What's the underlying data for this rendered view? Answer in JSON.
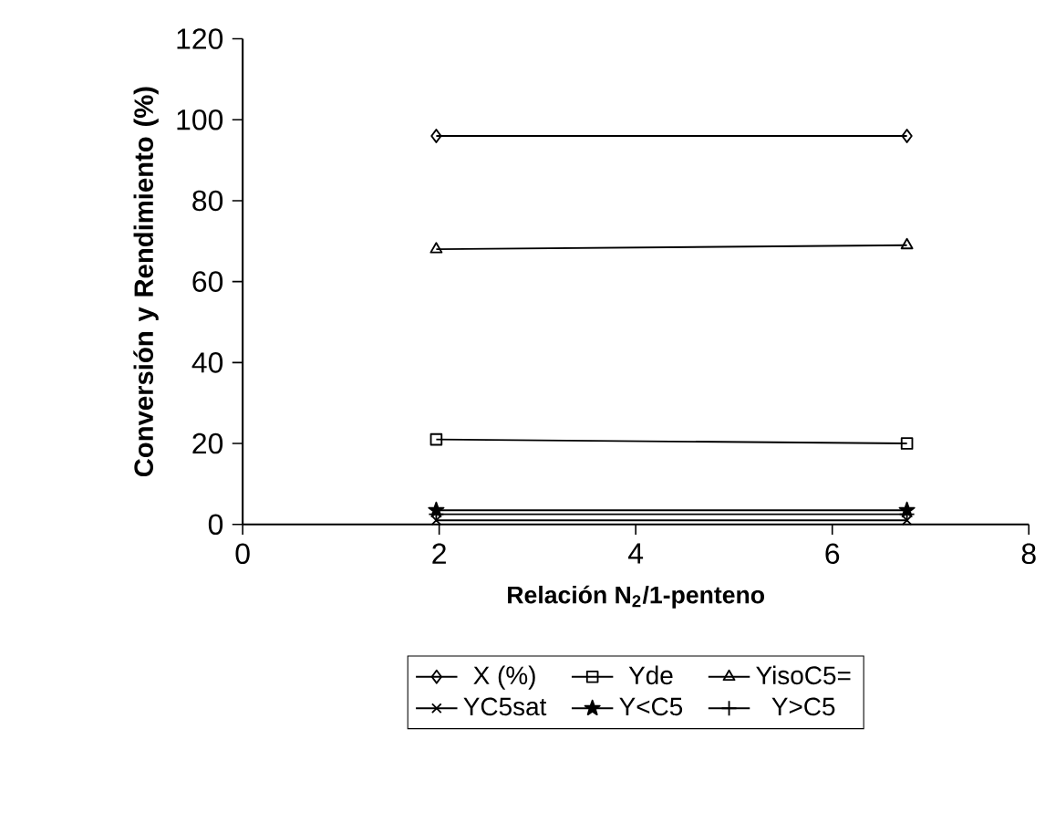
{
  "chart_data": {
    "type": "line",
    "xlabel": "Relación N$_{2}$/1-penteno",
    "ylabel": "Conversión y Rendimiento (%)",
    "x": [
      1.97,
      6.76
    ],
    "xlim": [
      0,
      8
    ],
    "xticks": [
      0,
      2,
      4,
      6,
      8
    ],
    "ylim": [
      0,
      120
    ],
    "yticks": [
      0,
      20,
      40,
      60,
      80,
      100,
      120
    ],
    "grid": false,
    "legend": "bottom",
    "series": [
      {
        "name": "X (%)",
        "color": "#000000",
        "marker": "diamond",
        "values": [
          96,
          96
        ]
      },
      {
        "name": "Yde",
        "color": "#000000",
        "marker": "square",
        "values": [
          21,
          20
        ]
      },
      {
        "name": "YisoC5=",
        "color": "#000000",
        "marker": "triangle",
        "values": [
          68,
          69
        ]
      },
      {
        "name": "YC5sat",
        "color": "#000000",
        "marker": "cross",
        "values": [
          1,
          1
        ]
      },
      {
        "name": "Y<C5",
        "color": "#000000",
        "marker": "star",
        "values": [
          3.5,
          3.5
        ]
      },
      {
        "name": "Y>C5",
        "color": "#000000",
        "marker": "plus",
        "values": [
          2.5,
          2.5
        ]
      }
    ]
  }
}
